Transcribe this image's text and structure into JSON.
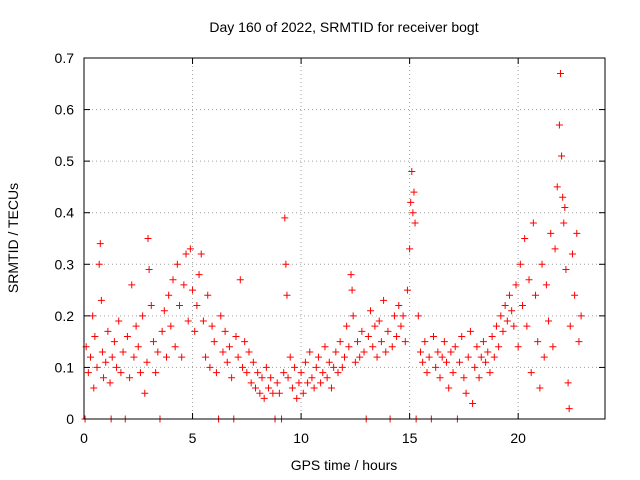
{
  "chart_data": {
    "type": "scatter",
    "title": "Day 160 of 2022, SRMTID for receiver bogt",
    "xlabel": "GPS time / hours",
    "ylabel": "SRMTID / TECUs",
    "xlim": [
      0,
      24
    ],
    "ylim": [
      0,
      0.7
    ],
    "x_ticks": [
      0,
      5,
      10,
      15,
      20
    ],
    "x_tick_labels": [
      "0",
      "5",
      "10",
      "15",
      "20"
    ],
    "y_ticks": [
      0,
      0.1,
      0.2,
      0.3,
      0.4,
      0.5,
      0.6,
      0.7
    ],
    "y_tick_labels": [
      "0",
      "0.1",
      "0.2",
      "0.3",
      "0.4",
      "0.5",
      "0.6",
      "0.7"
    ],
    "grid": true,
    "marker": "plus",
    "color": "#ff0000",
    "series": [
      {
        "name": "SRMTID",
        "points": [
          [
            0.05,
            0.0
          ],
          [
            0.1,
            0.14
          ],
          [
            0.2,
            0.09
          ],
          [
            0.3,
            0.12
          ],
          [
            0.4,
            0.2
          ],
          [
            0.45,
            0.06
          ],
          [
            0.5,
            0.16
          ],
          [
            0.6,
            0.1
          ],
          [
            0.7,
            0.3
          ],
          [
            0.75,
            0.34
          ],
          [
            0.8,
            0.23
          ],
          [
            0.85,
            0.13
          ],
          [
            0.9,
            0.08
          ],
          [
            1.0,
            0.11
          ],
          [
            1.1,
            0.17
          ],
          [
            1.2,
            0.07
          ],
          [
            1.25,
            0.0
          ],
          [
            1.3,
            0.12
          ],
          [
            1.4,
            0.15
          ],
          [
            1.5,
            0.1
          ],
          [
            1.6,
            0.19
          ],
          [
            1.7,
            0.09
          ],
          [
            1.8,
            0.13
          ],
          [
            1.9,
            0.0
          ],
          [
            2.0,
            0.16
          ],
          [
            2.1,
            0.08
          ],
          [
            2.2,
            0.26
          ],
          [
            2.3,
            0.12
          ],
          [
            2.4,
            0.18
          ],
          [
            2.5,
            0.14
          ],
          [
            2.6,
            0.09
          ],
          [
            2.7,
            0.2
          ],
          [
            2.8,
            0.05
          ],
          [
            2.9,
            0.11
          ],
          [
            2.95,
            0.35
          ],
          [
            3.0,
            0.29
          ],
          [
            3.1,
            0.22
          ],
          [
            3.2,
            0.15
          ],
          [
            3.3,
            0.09
          ],
          [
            3.4,
            0.13
          ],
          [
            3.5,
            0.0
          ],
          [
            3.6,
            0.17
          ],
          [
            3.7,
            0.21
          ],
          [
            3.8,
            0.12
          ],
          [
            3.9,
            0.24
          ],
          [
            4.0,
            0.18
          ],
          [
            4.1,
            0.27
          ],
          [
            4.2,
            0.14
          ],
          [
            4.3,
            0.3
          ],
          [
            4.4,
            0.22
          ],
          [
            4.5,
            0.12
          ],
          [
            4.6,
            0.26
          ],
          [
            4.7,
            0.32
          ],
          [
            4.8,
            0.19
          ],
          [
            4.9,
            0.33
          ],
          [
            5.0,
            0.25
          ],
          [
            5.1,
            0.17
          ],
          [
            5.2,
            0.22
          ],
          [
            5.3,
            0.28
          ],
          [
            5.4,
            0.32
          ],
          [
            5.5,
            0.19
          ],
          [
            5.6,
            0.12
          ],
          [
            5.7,
            0.24
          ],
          [
            5.8,
            0.1
          ],
          [
            5.9,
            0.18
          ],
          [
            6.0,
            0.15
          ],
          [
            6.1,
            0.09
          ],
          [
            6.2,
            0.0
          ],
          [
            6.3,
            0.2
          ],
          [
            6.4,
            0.13
          ],
          [
            6.5,
            0.17
          ],
          [
            6.6,
            0.11
          ],
          [
            6.7,
            0.14
          ],
          [
            6.8,
            0.08
          ],
          [
            6.9,
            0.0
          ],
          [
            7.0,
            0.16
          ],
          [
            7.1,
            0.12
          ],
          [
            7.2,
            0.27
          ],
          [
            7.3,
            0.1
          ],
          [
            7.4,
            0.15
          ],
          [
            7.5,
            0.09
          ],
          [
            7.6,
            0.13
          ],
          [
            7.7,
            0.07
          ],
          [
            7.8,
            0.11
          ],
          [
            7.9,
            0.06
          ],
          [
            8.0,
            0.09
          ],
          [
            8.1,
            0.05
          ],
          [
            8.2,
            0.08
          ],
          [
            8.3,
            0.04
          ],
          [
            8.4,
            0.1
          ],
          [
            8.5,
            0.06
          ],
          [
            8.6,
            0.08
          ],
          [
            8.7,
            0.05
          ],
          [
            8.8,
            0.0
          ],
          [
            8.9,
            0.07
          ],
          [
            9.0,
            0.05
          ],
          [
            9.1,
            0.0
          ],
          [
            9.2,
            0.09
          ],
          [
            9.25,
            0.39
          ],
          [
            9.3,
            0.3
          ],
          [
            9.35,
            0.24
          ],
          [
            9.4,
            0.08
          ],
          [
            9.5,
            0.12
          ],
          [
            9.6,
            0.06
          ],
          [
            9.7,
            0.1
          ],
          [
            9.8,
            0.04
          ],
          [
            9.9,
            0.07
          ],
          [
            10.0,
            0.09
          ],
          [
            10.1,
            0.05
          ],
          [
            10.2,
            0.11
          ],
          [
            10.3,
            0.07
          ],
          [
            10.4,
            0.13
          ],
          [
            10.5,
            0.08
          ],
          [
            10.6,
            0.06
          ],
          [
            10.7,
            0.1
          ],
          [
            10.8,
            0.12
          ],
          [
            10.9,
            0.07
          ],
          [
            11.0,
            0.09
          ],
          [
            11.1,
            0.14
          ],
          [
            11.2,
            0.08
          ],
          [
            11.3,
            0.11
          ],
          [
            11.4,
            0.06
          ],
          [
            11.5,
            0.1
          ],
          [
            11.6,
            0.13
          ],
          [
            11.7,
            0.09
          ],
          [
            11.8,
            0.15
          ],
          [
            11.9,
            0.1
          ],
          [
            12.0,
            0.12
          ],
          [
            12.1,
            0.18
          ],
          [
            12.2,
            0.14
          ],
          [
            12.3,
            0.28
          ],
          [
            12.35,
            0.25
          ],
          [
            12.4,
            0.2
          ],
          [
            12.5,
            0.11
          ],
          [
            12.6,
            0.15
          ],
          [
            12.7,
            0.12
          ],
          [
            12.8,
            0.17
          ],
          [
            12.9,
            0.13
          ],
          [
            13.0,
            0.0
          ],
          [
            13.1,
            0.16
          ],
          [
            13.2,
            0.21
          ],
          [
            13.3,
            0.14
          ],
          [
            13.4,
            0.18
          ],
          [
            13.5,
            0.12
          ],
          [
            13.6,
            0.19
          ],
          [
            13.7,
            0.15
          ],
          [
            13.8,
            0.23
          ],
          [
            13.9,
            0.13
          ],
          [
            14.0,
            0.17
          ],
          [
            14.1,
            0.0
          ],
          [
            14.2,
            0.14
          ],
          [
            14.3,
            0.2
          ],
          [
            14.4,
            0.16
          ],
          [
            14.5,
            0.22
          ],
          [
            14.6,
            0.18
          ],
          [
            14.7,
            0.2
          ],
          [
            14.8,
            0.15
          ],
          [
            14.9,
            0.25
          ],
          [
            15.0,
            0.33
          ],
          [
            15.05,
            0.42
          ],
          [
            15.1,
            0.48
          ],
          [
            15.15,
            0.4
          ],
          [
            15.2,
            0.44
          ],
          [
            15.25,
            0.38
          ],
          [
            15.3,
            0.0
          ],
          [
            15.4,
            0.2
          ],
          [
            15.5,
            0.13
          ],
          [
            15.6,
            0.11
          ],
          [
            15.7,
            0.15
          ],
          [
            15.8,
            0.09
          ],
          [
            15.9,
            0.12
          ],
          [
            16.0,
            0.0
          ],
          [
            16.1,
            0.16
          ],
          [
            16.2,
            0.1
          ],
          [
            16.3,
            0.13
          ],
          [
            16.4,
            0.08
          ],
          [
            16.5,
            0.12
          ],
          [
            16.6,
            0.15
          ],
          [
            16.7,
            0.11
          ],
          [
            16.8,
            0.06
          ],
          [
            16.9,
            0.13
          ],
          [
            17.0,
            0.09
          ],
          [
            17.1,
            0.14
          ],
          [
            17.2,
            0.0
          ],
          [
            17.3,
            0.11
          ],
          [
            17.4,
            0.16
          ],
          [
            17.5,
            0.08
          ],
          [
            17.6,
            0.05
          ],
          [
            17.7,
            0.12
          ],
          [
            17.8,
            0.17
          ],
          [
            17.9,
            0.03
          ],
          [
            18.0,
            0.1
          ],
          [
            18.1,
            0.14
          ],
          [
            18.2,
            0.08
          ],
          [
            18.3,
            0.12
          ],
          [
            18.4,
            0.15
          ],
          [
            18.5,
            0.11
          ],
          [
            18.6,
            0.13
          ],
          [
            18.7,
            0.09
          ],
          [
            18.8,
            0.16
          ],
          [
            18.9,
            0.12
          ],
          [
            19.0,
            0.18
          ],
          [
            19.1,
            0.14
          ],
          [
            19.2,
            0.2
          ],
          [
            19.3,
            0.17
          ],
          [
            19.4,
            0.22
          ],
          [
            19.5,
            0.19
          ],
          [
            19.6,
            0.24
          ],
          [
            19.7,
            0.21
          ],
          [
            19.8,
            0.18
          ],
          [
            19.9,
            0.26
          ],
          [
            20.0,
            0.14
          ],
          [
            20.1,
            0.3
          ],
          [
            20.2,
            0.22
          ],
          [
            20.3,
            0.35
          ],
          [
            20.4,
            0.18
          ],
          [
            20.5,
            0.27
          ],
          [
            20.6,
            0.09
          ],
          [
            20.7,
            0.38
          ],
          [
            20.8,
            0.24
          ],
          [
            20.9,
            0.15
          ],
          [
            21.0,
            0.06
          ],
          [
            21.1,
            0.3
          ],
          [
            21.2,
            0.12
          ],
          [
            21.3,
            0.26
          ],
          [
            21.4,
            0.19
          ],
          [
            21.5,
            0.36
          ],
          [
            21.6,
            0.14
          ],
          [
            21.7,
            0.33
          ],
          [
            21.8,
            0.45
          ],
          [
            21.9,
            0.57
          ],
          [
            21.95,
            0.67
          ],
          [
            22.0,
            0.51
          ],
          [
            22.05,
            0.43
          ],
          [
            22.1,
            0.38
          ],
          [
            22.15,
            0.41
          ],
          [
            22.2,
            0.29
          ],
          [
            22.3,
            0.07
          ],
          [
            22.35,
            0.02
          ],
          [
            22.4,
            0.18
          ],
          [
            22.5,
            0.32
          ],
          [
            22.6,
            0.24
          ],
          [
            22.7,
            0.36
          ],
          [
            22.8,
            0.15
          ],
          [
            22.9,
            0.2
          ]
        ]
      }
    ]
  }
}
